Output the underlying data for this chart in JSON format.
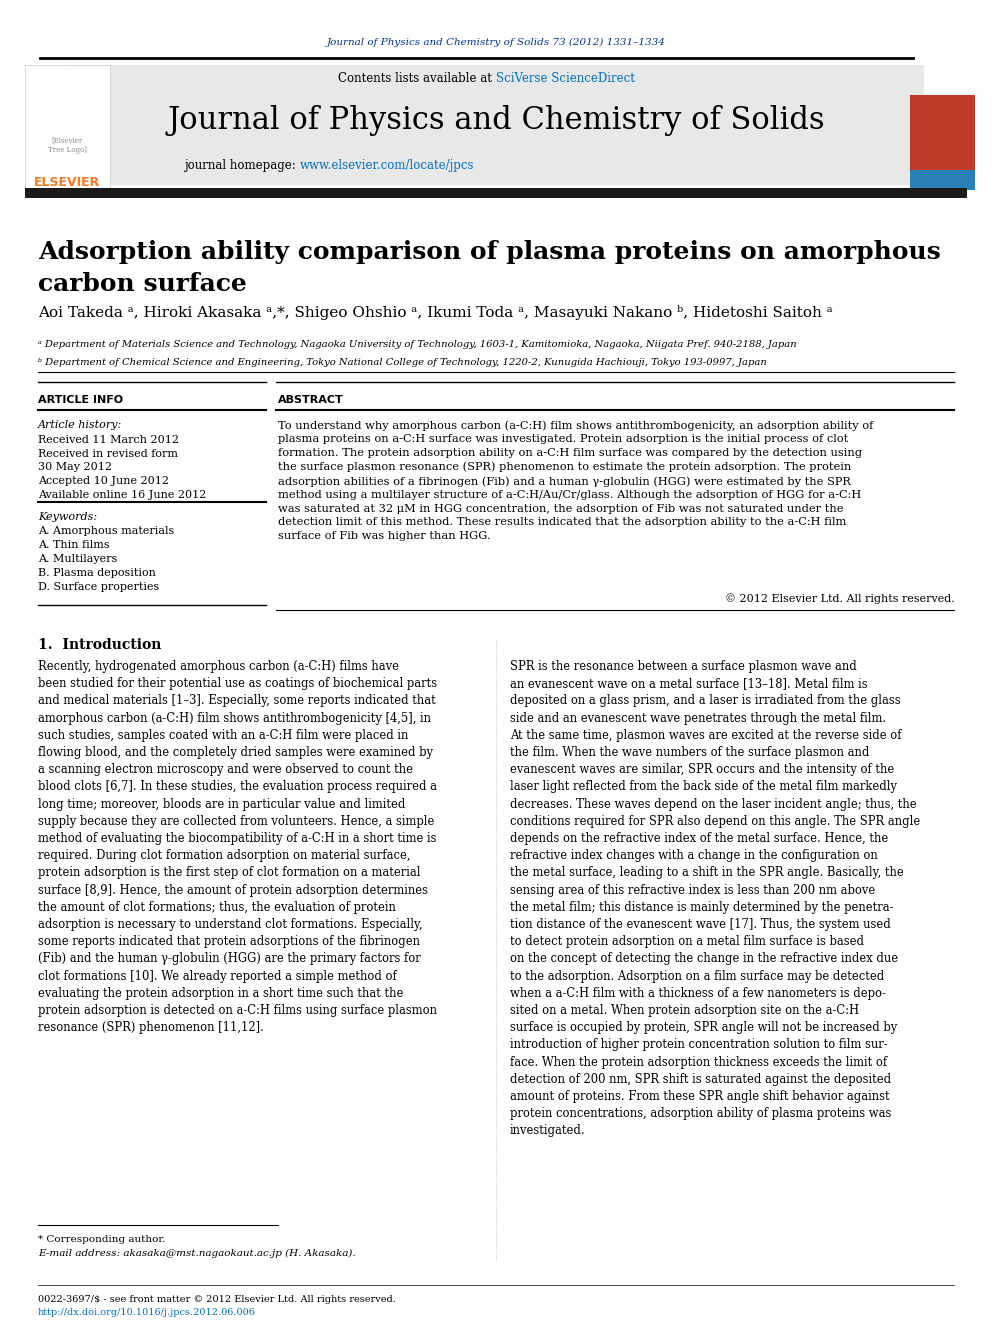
{
  "page_bg": "#ffffff",
  "top_journal_ref": "Journal of Physics and Chemistry of Solids 73 (2012) 1331–1334",
  "journal_name": "Journal of Physics and Chemistry of Solids",
  "contents_text": "Contents lists available at ",
  "sciverse_text": "SciVerse ScienceDirect",
  "homepage_text": "journal homepage: www.elsevier.com/locate/jpcs",
  "header_bg": "#e8e8e8",
  "article_title": "Adsorption ability comparison of plasma proteins on amorphous\ncarbon surface",
  "authors": "Aoi Takeda ᵃ, Hiroki Akasaka ᵃ,*, Shigeo Ohshio ᵃ, Ikumi Toda ᵃ, Masayuki Nakano ᵇ, Hidetoshi Saitoh ᵃ",
  "affil_a": "ᵃ Department of Materials Science and Technology, Nagaoka University of Technology, 1603-1, Kamitomioka, Nagaoka, Niigata Pref. 940-2188, Japan",
  "affil_b": "ᵇ Department of Chemical Science and Engineering, Tokyo National College of Technology, 1220-2, Kunugida Hachiouji, Tokyo 193-0997, Japan",
  "article_info_title": "ARTICLE INFO",
  "article_history_label": "Article history:",
  "received1": "Received 11 March 2012",
  "received2": "Received in revised form",
  "received2b": "30 May 2012",
  "accepted": "Accepted 10 June 2012",
  "available": "Available online 16 June 2012",
  "keywords_label": "Keywords:",
  "keywords": [
    "A. Amorphous materials",
    "A. Thin films",
    "A. Multilayers",
    "B. Plasma deposition",
    "D. Surface properties"
  ],
  "abstract_title": "ABSTRACT",
  "abstract_text": "To understand why amorphous carbon (a-C:H) film shows antithrombogenicity, an adsorption ability of\nplasma proteins on a-C:H surface was investigated. Protein adsorption is the initial process of clot\nformation. The protein adsorption ability on a-C:H film surface was compared by the detection using\nthe surface plasmon resonance (SPR) phenomenon to estimate the protein adsorption. The protein\nadsorption abilities of a fibrinogen (Fib) and a human γ-globulin (HGG) were estimated by the SPR\nmethod using a multilayer structure of a-C:H/Au/Cr/glass. Although the adsorption of HGG for a-C:H\nwas saturated at 32 μM in HGG concentration, the adsorption of Fib was not saturated under the\ndetection limit of this method. These results indicated that the adsorption ability to the a-C:H film\nsurface of Fib was higher than HGG.",
  "copyright": "© 2012 Elsevier Ltd. All rights reserved.",
  "intro_title": "1.  Introduction",
  "intro_col1": "Recently, hydrogenated amorphous carbon (a-C:H) films have\nbeen studied for their potential use as coatings of biochemical parts\nand medical materials [1–3]. Especially, some reports indicated that\namorphous carbon (a-C:H) film shows antithrombogenicity [4,5], in\nsuch studies, samples coated with an a-C:H film were placed in\nflowing blood, and the completely dried samples were examined by\na scanning electron microscopy and were observed to count the\nblood clots [6,7]. In these studies, the evaluation process required a\nlong time; moreover, bloods are in particular value and limited\nsupply because they are collected from volunteers. Hence, a simple\nmethod of evaluating the biocompatibility of a-C:H in a short time is\nrequired. During clot formation adsorption on material surface,\nprotein adsorption is the first step of clot formation on a material\nsurface [8,9]. Hence, the amount of protein adsorption determines\nthe amount of clot formations; thus, the evaluation of protein\nadsorption is necessary to understand clot formations. Especially,\nsome reports indicated that protein adsorptions of the fibrinogen\n(Fib) and the human γ-globulin (HGG) are the primary factors for\nclot formations [10]. We already reported a simple method of\nevaluating the protein adsorption in a short time such that the\nprotein adsorption is detected on a-C:H films using surface plasmon\nresonance (SPR) phenomenon [11,12].",
  "footnote_star": "* Corresponding author.",
  "footnote_email": "E-mail address: akasaka@mst.nagaokaut.ac.jp (H. Akasaka).",
  "intro_col2": "SPR is the resonance between a surface plasmon wave and\nan evanescent wave on a metal surface [13–18]. Metal film is\ndeposited on a glass prism, and a laser is irradiated from the glass\nside and an evanescent wave penetrates through the metal film.\nAt the same time, plasmon waves are excited at the reverse side of\nthe film. When the wave numbers of the surface plasmon and\nevanescent waves are similar, SPR occurs and the intensity of the\nlaser light reflected from the back side of the metal film markedly\ndecreases. These waves depend on the laser incident angle; thus, the\nconditions required for SPR also depend on this angle. The SPR angle\ndepends on the refractive index of the metal surface. Hence, the\nrefractive index changes with a change in the configuration on\nthe metal surface, leading to a shift in the SPR angle. Basically, the\nsensing area of this refractive index is less than 200 nm above\nthe metal film; this distance is mainly determined by the penetra-\ntion distance of the evanescent wave [17]. Thus, the system used\nto detect protein adsorption on a metal film surface is based\non the concept of detecting the change in the refractive index due\nto the adsorption. Adsorption on a film surface may be detected\nwhen a a-C:H film with a thickness of a few nanometers is depo-\nsited on a metal. When protein adsorption site on the a-C:H\nsurface is occupied by protein, SPR angle will not be increased by\nintroduction of higher protein concentration solution to film sur-\nface. When the protein adsorption thickness exceeds the limit of\ndetection of 200 nm, SPR shift is saturated against the deposited\namount of proteins. From these SPR angle shift behavior against\nprotein concentrations, adsorption ability of plasma proteins was\ninvestigated.",
  "bottom_text1": "0022-3697/$ - see front matter © 2012 Elsevier Ltd. All rights reserved.",
  "bottom_text2": "http://dx.doi.org/10.1016/j.jpcs.2012.06.006",
  "elsevier_orange": "#f47920",
  "link_color": "#0070c0",
  "journal_ref_color": "#003399",
  "title_color": "#000000",
  "text_color": "#000000",
  "dark_bar_color": "#1a1a1a"
}
